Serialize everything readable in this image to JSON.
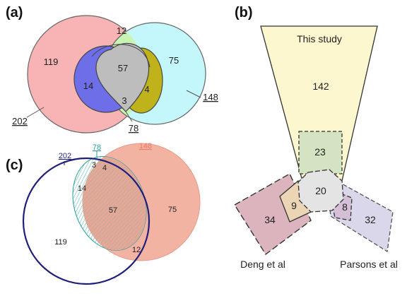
{
  "panels": {
    "a": "(a)",
    "b": "(b)",
    "c": "(c)"
  },
  "venn_a": {
    "regions": {
      "pink_only": "119",
      "pink_cyan_green": "12",
      "cyan_only": "75",
      "center": "57",
      "blue": "14",
      "olive": "4",
      "triple": "3"
    },
    "totals": {
      "pink": "202",
      "cyan": "148",
      "gray": "78"
    },
    "colors": {
      "pink": "#f8b4b4",
      "cyan": "#c3f7fb",
      "green": "#c8f5b4",
      "blue": "#6d6ee8",
      "olive": "#bfb21a",
      "gray": "#bdbdbd"
    }
  },
  "venn_b": {
    "labels": {
      "this_study": "This study",
      "deng": "Deng et al",
      "parsons": "Parsons et al"
    },
    "regions": {
      "this_study_only": "142",
      "this_study_green": "23",
      "center": "20",
      "deng_only": "34",
      "deng_overlap": "9",
      "parsons_overlap": "8",
      "parsons_only": "32"
    },
    "colors": {
      "yellow": "#fdf7cf",
      "green": "#d4e3c1",
      "red": "#dbb4bd",
      "orange": "#ecd5b4",
      "purple": "#dad7eb",
      "gray": "#e4e4e4"
    }
  },
  "venn_c": {
    "totals": {
      "navy": "202",
      "teal": "78",
      "salmon": "148"
    },
    "regions": {
      "teal_top": "3",
      "teal_salmon_top": "4",
      "teal_only": "14",
      "center": "57",
      "salmon_only": "75",
      "navy_only": "119",
      "navy_salmon": "12"
    },
    "colors": {
      "navy": "#1e1f7a",
      "teal": "#2a9c9c",
      "salmon": "#ec9c88"
    }
  }
}
